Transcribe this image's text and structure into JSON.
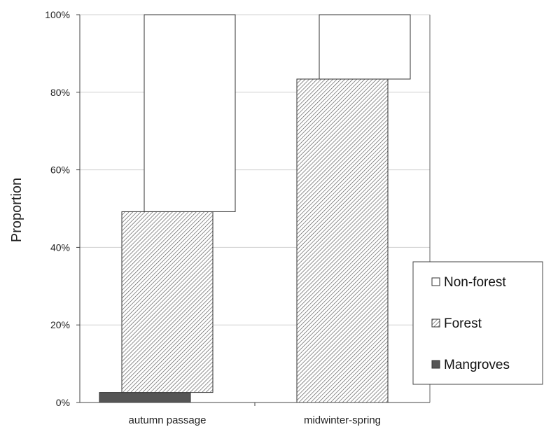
{
  "chart_data": {
    "type": "bar",
    "stacked": true,
    "categories": [
      "autumn passage",
      "midwinter-spring"
    ],
    "series": [
      {
        "name": "Mangroves",
        "values": [
          2.6,
          0
        ],
        "color": "#555555",
        "pattern": "solid"
      },
      {
        "name": "Forest",
        "values": [
          46.6,
          83.4
        ],
        "color": "#ffffff",
        "pattern": "diagonal-hatch"
      },
      {
        "name": "Non-forest",
        "values": [
          50.8,
          16.6
        ],
        "color": "#ffffff",
        "pattern": "none"
      }
    ],
    "ylabel": "Proportion",
    "ylim": [
      0,
      100
    ],
    "yticks": [
      "0%",
      "20%",
      "40%",
      "60%",
      "80%",
      "100%"
    ],
    "grid": true,
    "legend": {
      "position": "right",
      "items": [
        "Non-forest",
        "Forest",
        "Mangroves"
      ]
    }
  }
}
